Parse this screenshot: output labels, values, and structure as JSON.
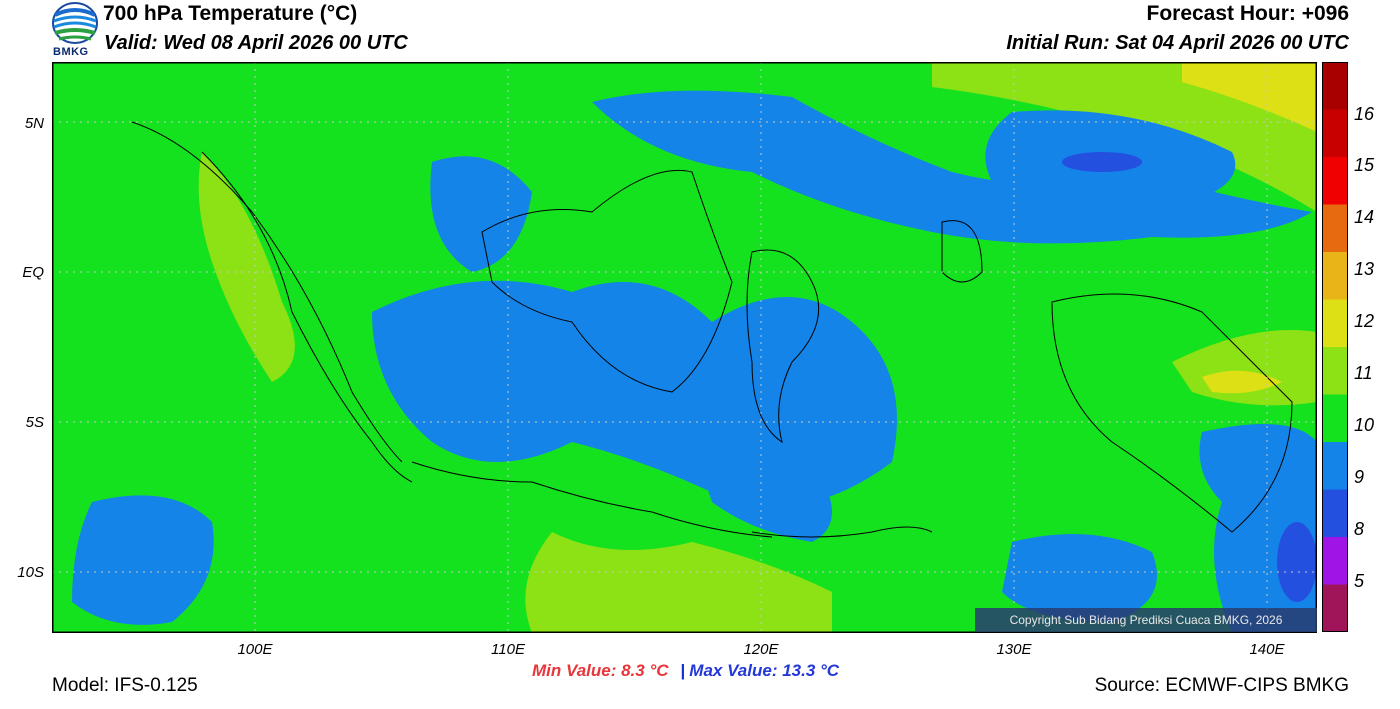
{
  "header": {
    "title": "700 hPa Temperature (°C)",
    "valid": "Valid: Wed 08 April 2026 00 UTC",
    "forecast_hour": "Forecast Hour: +096",
    "initial_run": "Initial Run: Sat 04 April 2026 00 UTC"
  },
  "logo": {
    "text": "BMKG"
  },
  "axes": {
    "lat_labels": [
      "5N",
      "EQ",
      "5S",
      "10S"
    ],
    "lon_labels": [
      "100E",
      "110E",
      "120E",
      "130E",
      "140E"
    ]
  },
  "colorbar": {
    "labels": [
      "16",
      "15",
      "14",
      "13",
      "12",
      "11",
      "10",
      "9",
      "8",
      "5"
    ],
    "colors": [
      "#a80000",
      "#c80000",
      "#f00000",
      "#e86a10",
      "#e8b418",
      "#dce014",
      "#8ce214",
      "#14e21e",
      "#1484e8",
      "#2450e0",
      "#a014e6",
      "#a0145a"
    ]
  },
  "map_colors": {
    "ocean_green": "#14e21e",
    "cool_blue": "#1484e8",
    "deep_blue": "#2450e0",
    "warm_lime": "#8ce214",
    "warm_yellow": "#dce014"
  },
  "copyright": "Copyright Sub Bidang Prediksi Cuaca BMKG, 2026",
  "stats": {
    "min_label": "Min Value: 8.3 °C",
    "separator": "|",
    "max_label": "Max Value: 13.3 °C"
  },
  "footer": {
    "model": "Model: IFS-0.125",
    "source": "Source: ECMWF-CIPS BMKG"
  }
}
